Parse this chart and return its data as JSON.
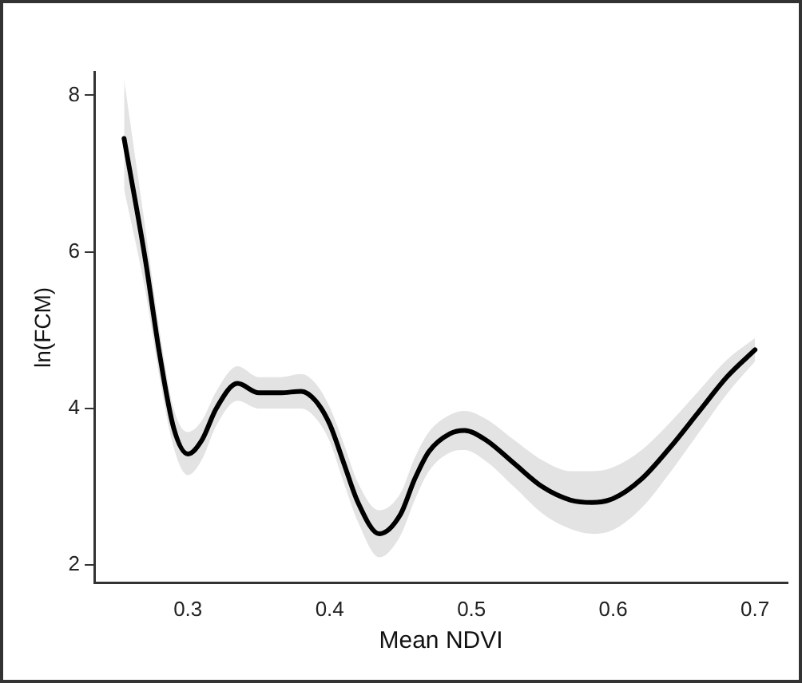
{
  "chart_data": {
    "type": "line",
    "xlabel": "Mean NDVI",
    "ylabel": "ln(FCM)",
    "xlim": [
      0.234,
      0.723
    ],
    "ylim": [
      1.77,
      8.3
    ],
    "xticks": [
      0.3,
      0.4,
      0.5,
      0.6,
      0.7
    ],
    "yticks": [
      2,
      4,
      6,
      8
    ],
    "grid": false,
    "legend": false,
    "marker": "none",
    "line_style": "solid",
    "series": [
      {
        "color": "#000000",
        "x": [
          0.255,
          0.27,
          0.28,
          0.29,
          0.3,
          0.31,
          0.32,
          0.335,
          0.35,
          0.365,
          0.38,
          0.39,
          0.4,
          0.41,
          0.42,
          0.435,
          0.45,
          0.46,
          0.47,
          0.485,
          0.495,
          0.51,
          0.53,
          0.55,
          0.57,
          0.585,
          0.6,
          0.62,
          0.64,
          0.66,
          0.68,
          0.7
        ],
        "values": [
          7.45,
          5.9,
          4.7,
          3.75,
          3.42,
          3.6,
          4.0,
          4.32,
          4.2,
          4.2,
          4.22,
          4.1,
          3.8,
          3.3,
          2.8,
          2.4,
          2.65,
          3.1,
          3.45,
          3.68,
          3.72,
          3.6,
          3.3,
          3.0,
          2.83,
          2.8,
          2.85,
          3.1,
          3.5,
          3.95,
          4.4,
          4.75
        ],
        "lower": [
          6.8,
          5.5,
          4.4,
          3.5,
          3.15,
          3.35,
          3.78,
          4.1,
          4.0,
          4.0,
          4.0,
          3.88,
          3.58,
          3.05,
          2.55,
          2.1,
          2.38,
          2.83,
          3.2,
          3.44,
          3.47,
          3.33,
          3.0,
          2.66,
          2.46,
          2.4,
          2.45,
          2.73,
          3.18,
          3.68,
          4.18,
          4.6
        ],
        "upper": [
          8.2,
          6.3,
          5.0,
          4.0,
          3.7,
          3.85,
          4.22,
          4.54,
          4.4,
          4.4,
          4.44,
          4.32,
          4.02,
          3.55,
          3.05,
          2.7,
          2.92,
          3.37,
          3.7,
          3.92,
          3.97,
          3.87,
          3.6,
          3.34,
          3.2,
          3.2,
          3.25,
          3.47,
          3.82,
          4.22,
          4.62,
          4.9
        ]
      }
    ]
  }
}
